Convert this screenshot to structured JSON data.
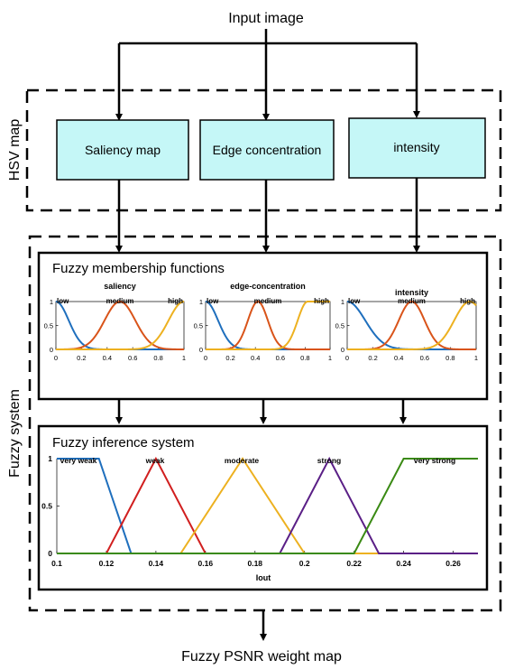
{
  "diagram": {
    "top_label": "Input image",
    "bottom_label": "Fuzzy PSNR weight map",
    "hsv_group_label": "HSV map",
    "fuzzy_group_label": "Fuzzy system",
    "boxes": [
      "Saliency map",
      "Edge concentration",
      "intensity"
    ],
    "membership_panel_title": "Fuzzy membership functions",
    "inference_panel_title": "Fuzzy inference system",
    "box_fill": "#c5f7f7",
    "colors": {
      "blue": "#1f6fbd",
      "orange": "#d9541a",
      "yellow": "#edb120",
      "red": "#d11f1f",
      "purple": "#5a1f86",
      "green": "#3a8a14"
    }
  },
  "chart_data": [
    {
      "type": "line",
      "title": "saliency",
      "xlim": [
        0,
        1
      ],
      "ylim": [
        0,
        1
      ],
      "x_ticks": [
        "0",
        "0.2",
        "0.4",
        "0.6",
        "0.8",
        "1"
      ],
      "y_ticks": [
        "0",
        "0.5",
        "1"
      ],
      "series": [
        {
          "name": "low",
          "shape": "gauss",
          "center": 0,
          "sigma": 0.1
        },
        {
          "name": "medium",
          "shape": "gauss",
          "center": 0.5,
          "sigma": 0.12
        },
        {
          "name": "high",
          "shape": "gauss",
          "center": 1,
          "sigma": 0.12
        }
      ]
    },
    {
      "type": "line",
      "title": "edge-concentration",
      "xlim": [
        0,
        1
      ],
      "ylim": [
        0,
        1
      ],
      "x_ticks": [
        "0",
        "0.2",
        "0.4",
        "0.6",
        "0.8",
        "1"
      ],
      "y_ticks": [
        "0",
        "0.5",
        "1"
      ],
      "series": [
        {
          "name": "low",
          "shape": "gauss",
          "center": 0,
          "sigma": 0.1
        },
        {
          "name": "medium",
          "shape": "gauss",
          "center": 0.42,
          "sigma": 0.08
        },
        {
          "name": "high",
          "shape": "gauss",
          "center": 0.82,
          "sigma": 0.08,
          "plateau_after_center": true
        }
      ]
    },
    {
      "type": "line",
      "title": "intensity",
      "xlim": [
        0,
        1
      ],
      "ylim": [
        0,
        1
      ],
      "x_ticks": [
        "0",
        "0.2",
        "0.4",
        "0.6",
        "0.8",
        "1"
      ],
      "y_ticks": [
        "0",
        "0.5",
        "1"
      ],
      "series": [
        {
          "name": "low",
          "shape": "gauss",
          "center": 0,
          "sigma": 0.14
        },
        {
          "name": "medium",
          "shape": "gauss",
          "center": 0.5,
          "sigma": 0.1
        },
        {
          "name": "high",
          "shape": "gauss",
          "center": 0.95,
          "sigma": 0.12
        }
      ]
    },
    {
      "type": "line",
      "xlabel": "Iout",
      "xlim": [
        0.1,
        0.27
      ],
      "ylim": [
        0,
        1
      ],
      "x_ticks": [
        "0.1",
        "0.12",
        "0.14",
        "0.16",
        "0.18",
        "0.2",
        "0.22",
        "0.24",
        "0.26"
      ],
      "y_ticks": [
        "0",
        "0.5",
        "1"
      ],
      "series": [
        {
          "name": "very weak",
          "points": [
            [
              0.1,
              1
            ],
            [
              0.117,
              1
            ],
            [
              0.13,
              0
            ],
            [
              0.27,
              0
            ]
          ]
        },
        {
          "name": "weak",
          "points": [
            [
              0.1,
              0
            ],
            [
              0.12,
              0
            ],
            [
              0.14,
              1
            ],
            [
              0.16,
              0
            ],
            [
              0.27,
              0
            ]
          ]
        },
        {
          "name": "moderate",
          "points": [
            [
              0.1,
              0
            ],
            [
              0.15,
              0
            ],
            [
              0.175,
              1
            ],
            [
              0.2,
              0
            ],
            [
              0.27,
              0
            ]
          ]
        },
        {
          "name": "strong",
          "points": [
            [
              0.1,
              0
            ],
            [
              0.19,
              0
            ],
            [
              0.21,
              1
            ],
            [
              0.23,
              0
            ],
            [
              0.27,
              0
            ]
          ]
        },
        {
          "name": "very strong",
          "points": [
            [
              0.1,
              0
            ],
            [
              0.22,
              0
            ],
            [
              0.24,
              1
            ],
            [
              0.27,
              1
            ]
          ]
        }
      ]
    }
  ]
}
